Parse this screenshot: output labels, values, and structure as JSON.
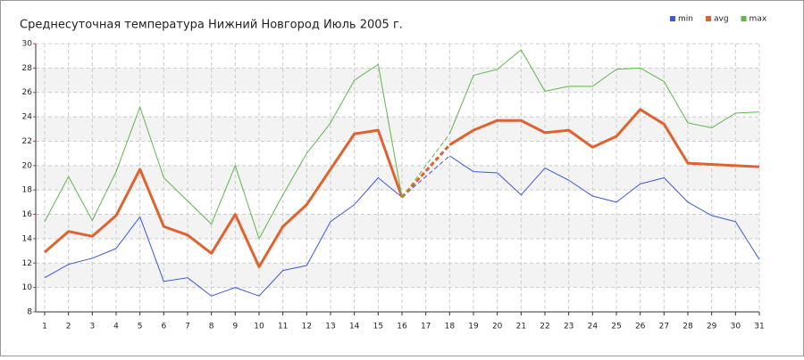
{
  "chart_data": {
    "type": "line",
    "title": "Среднесуточная температура Нижний Новгород  Июль 2005 г.",
    "x": [
      1,
      2,
      3,
      4,
      5,
      6,
      7,
      8,
      9,
      10,
      11,
      12,
      13,
      14,
      15,
      16,
      17,
      18,
      19,
      20,
      21,
      22,
      23,
      24,
      25,
      26,
      27,
      28,
      29,
      30,
      31
    ],
    "xlim": [
      1,
      31
    ],
    "xticks": [
      1,
      2,
      3,
      4,
      5,
      6,
      7,
      8,
      9,
      10,
      11,
      12,
      13,
      14,
      15,
      16,
      17,
      18,
      19,
      20,
      21,
      22,
      23,
      24,
      25,
      26,
      27,
      28,
      29,
      30,
      31
    ],
    "ylim": [
      8,
      30
    ],
    "yticks": [
      8,
      10,
      12,
      14,
      16,
      18,
      20,
      22,
      24,
      26,
      28,
      30
    ],
    "grid": true,
    "legend": "top-right",
    "series": [
      {
        "name": "min",
        "color": "#3a5ad6",
        "values": [
          10.8,
          11.9,
          12.4,
          13.2,
          15.8,
          10.5,
          10.8,
          9.3,
          10.0,
          9.3,
          11.4,
          11.8,
          15.4,
          16.8,
          19.0,
          17.4,
          null,
          20.8,
          19.5,
          19.4,
          17.6,
          19.8,
          18.8,
          17.5,
          17.0,
          18.5,
          19.0,
          17.0,
          15.9,
          15.4,
          12.3
        ]
      },
      {
        "name": "avg",
        "color": "#e0622e",
        "values": [
          12.9,
          14.6,
          14.2,
          15.9,
          19.7,
          15.0,
          14.3,
          12.8,
          16.0,
          11.7,
          15.0,
          16.8,
          19.7,
          22.6,
          22.9,
          17.4,
          null,
          21.7,
          22.9,
          23.7,
          23.7,
          22.7,
          22.9,
          21.5,
          22.4,
          24.6,
          23.4,
          20.2,
          20.1,
          20.0,
          19.9
        ]
      },
      {
        "name": "max",
        "color": "#5db84a",
        "values": [
          15.4,
          19.1,
          15.5,
          19.5,
          24.8,
          19.0,
          17.1,
          15.2,
          20.0,
          14.0,
          17.6,
          21.0,
          23.5,
          27.0,
          28.3,
          17.4,
          null,
          22.6,
          27.4,
          27.9,
          29.5,
          26.1,
          26.5,
          26.5,
          27.9,
          28.0,
          26.9,
          23.5,
          23.1,
          24.3,
          24.4
        ]
      }
    ]
  }
}
